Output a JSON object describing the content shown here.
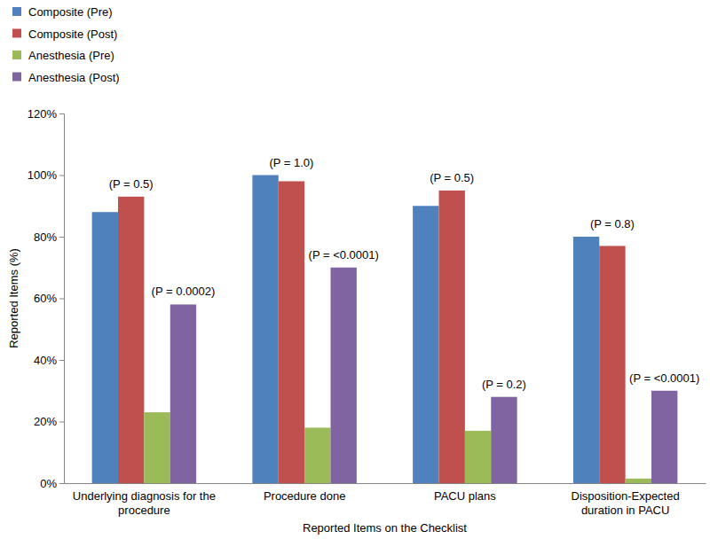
{
  "chart_data": {
    "type": "bar",
    "x_label": "Reported Items on the Checklist",
    "y_label": "Reported Items (%)",
    "categories": [
      "Underlying diagnosis for the procedure",
      "Procedure done",
      "PACU plans",
      "Disposition-Expected duration in PACU"
    ],
    "series": [
      {
        "name": "Composite (Pre)",
        "color": "#4f81bd",
        "values": [
          88,
          100,
          90,
          80
        ]
      },
      {
        "name": "Composite (Post)",
        "color": "#c0504d",
        "values": [
          93,
          98,
          95,
          77
        ]
      },
      {
        "name": "Anesthesia (Pre)",
        "color": "#9bbb59",
        "values": [
          23,
          18,
          17,
          1.5
        ]
      },
      {
        "name": "Anesthesia (Post)",
        "color": "#8064a2",
        "values": [
          58,
          70,
          28,
          30
        ]
      }
    ],
    "ylim": [
      0,
      120
    ],
    "yticks": [
      {
        "value": 0,
        "label": "0%"
      },
      {
        "value": 20,
        "label": "20%"
      },
      {
        "value": 40,
        "label": "40%"
      },
      {
        "value": 60,
        "label": "60%"
      },
      {
        "value": 80,
        "label": "80%"
      },
      {
        "value": 100,
        "label": "100%"
      },
      {
        "value": 120,
        "label": "120%"
      }
    ],
    "grid": false,
    "legend": "top-left",
    "annotations": [
      {
        "text": "(P = 0.5)",
        "category": "Underlying diagnosis for the procedure",
        "series": [
          "Composite (Pre)",
          "Composite (Post)"
        ]
      },
      {
        "text": "(P = 0.0002)",
        "category": "Underlying diagnosis for the procedure",
        "series": [
          "Anesthesia (Pre)",
          "Anesthesia (Post)"
        ]
      },
      {
        "text": "(P = 1.0)",
        "category": "Procedure done",
        "series": [
          "Composite (Pre)",
          "Composite (Post)"
        ]
      },
      {
        "text": "(P = <0.0001)",
        "category": "Procedure done",
        "series": [
          "Anesthesia (Pre)",
          "Anesthesia (Post)"
        ]
      },
      {
        "text": "(P = 0.5)",
        "category": "PACU plans",
        "series": [
          "Composite (Pre)",
          "Composite (Post)"
        ]
      },
      {
        "text": "(P = 0.2)",
        "category": "PACU plans",
        "series": [
          "Anesthesia (Pre)",
          "Anesthesia (Post)"
        ]
      },
      {
        "text": "(P = 0.8)",
        "category": "Disposition-Expected duration in PACU",
        "series": [
          "Composite (Pre)",
          "Composite (Post)"
        ]
      },
      {
        "text": "(P = <0.0001)",
        "category": "Disposition-Expected duration in PACU",
        "series": [
          "Anesthesia (Pre)",
          "Anesthesia (Post)"
        ]
      }
    ]
  }
}
